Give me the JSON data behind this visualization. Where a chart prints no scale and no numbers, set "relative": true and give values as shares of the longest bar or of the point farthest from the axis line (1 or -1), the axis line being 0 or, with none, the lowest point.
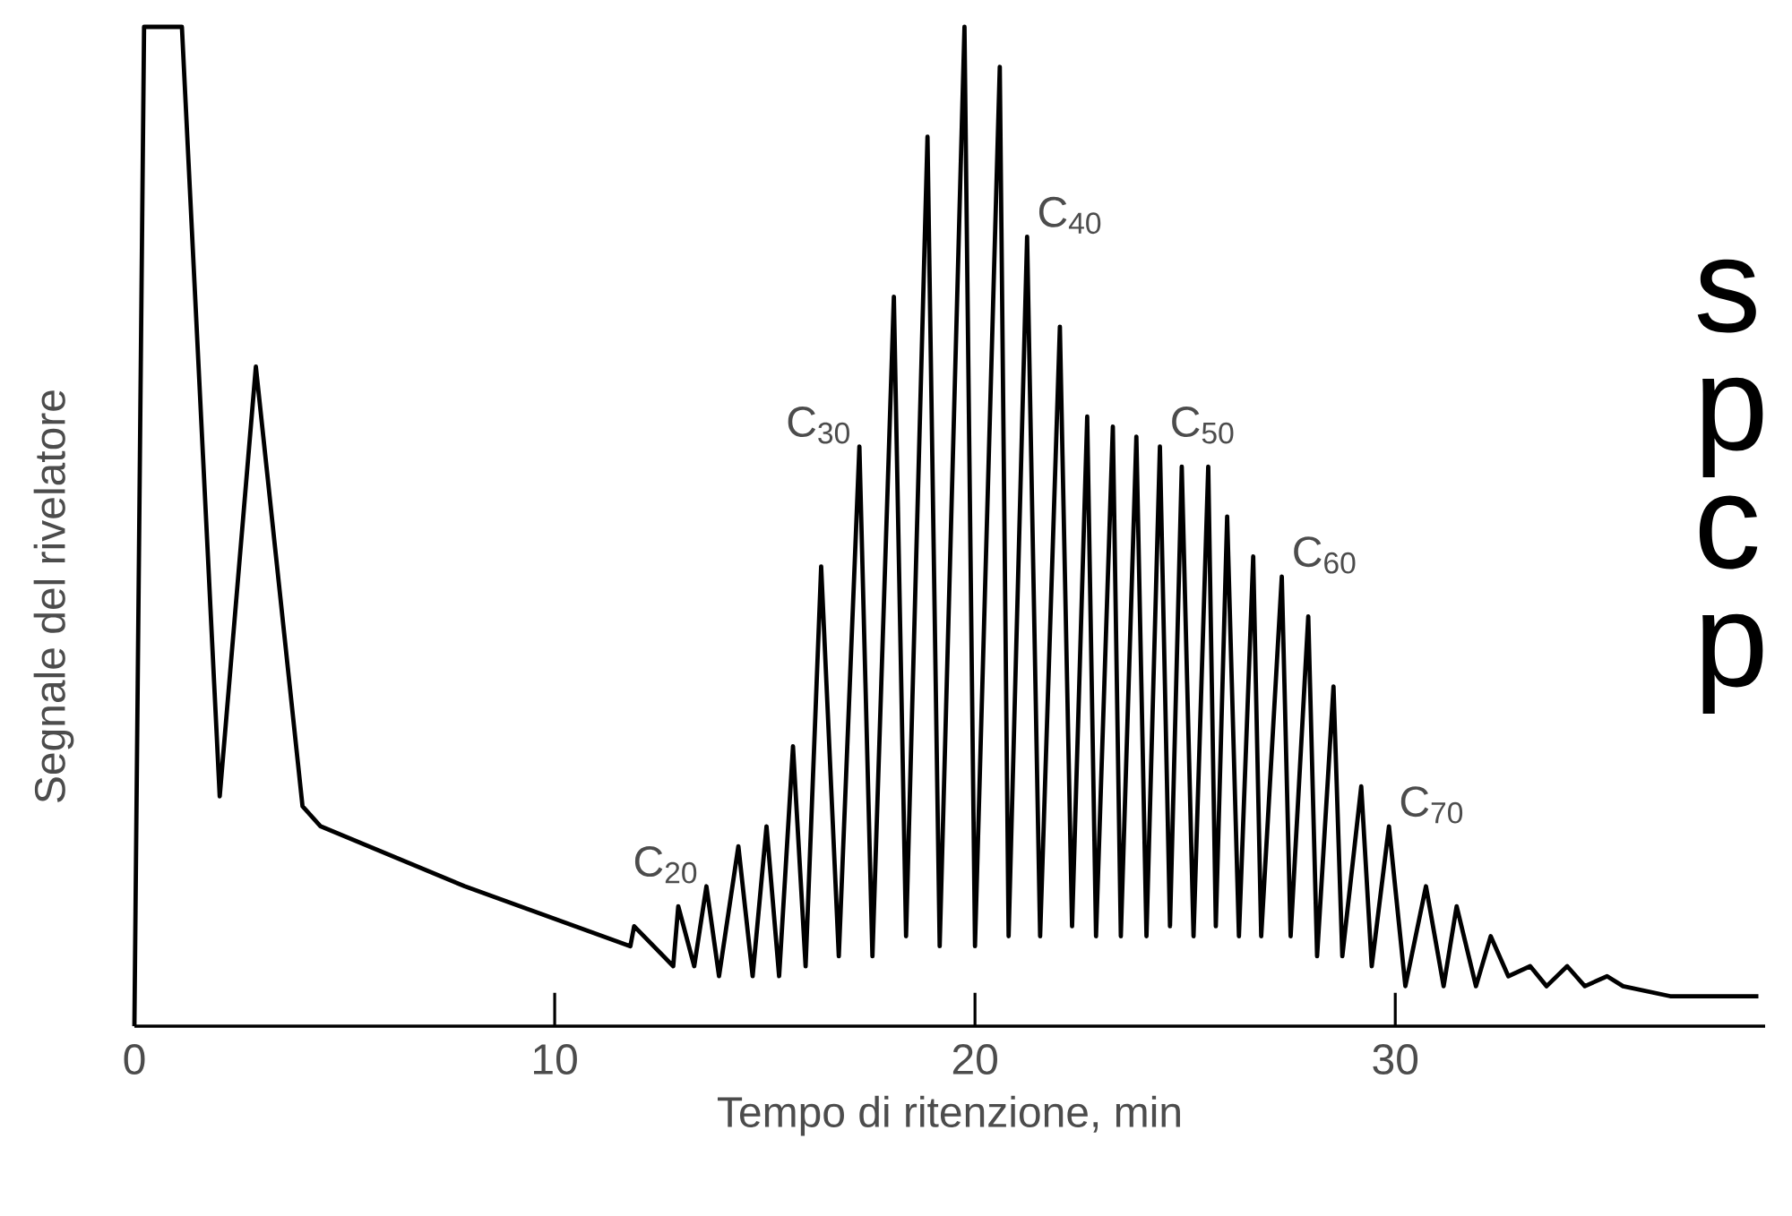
{
  "chart_data": {
    "type": "line",
    "relative": true,
    "color": "#000000",
    "xlabel": "Tempo di ritenzione, min",
    "ylabel": "Segnale del rivelatore",
    "xlim": [
      0,
      38.8
    ],
    "xticks": [
      0,
      10,
      20,
      30
    ],
    "x": [
      0,
      0.23,
      1.13,
      2.03,
      2.89,
      4.0,
      4.43,
      7.86,
      11.8,
      11.89,
      12.82,
      12.94,
      13.32,
      13.61,
      13.91,
      14.37,
      14.71,
      15.04,
      15.34,
      15.67,
      15.97,
      16.34,
      16.76,
      17.25,
      17.56,
      18.07,
      18.36,
      18.87,
      19.16,
      19.75,
      20.0,
      20.59,
      20.8,
      21.24,
      21.55,
      22.02,
      22.31,
      22.67,
      22.88,
      23.28,
      23.47,
      23.84,
      24.08,
      24.4,
      24.64,
      24.92,
      25.2,
      25.55,
      25.73,
      26.0,
      26.28,
      26.62,
      26.81,
      27.3,
      27.51,
      27.93,
      28.14,
      28.53,
      28.74,
      29.19,
      29.44,
      29.85,
      30.24,
      30.73,
      31.15,
      31.46,
      31.92,
      32.27,
      32.69,
      33.21,
      33.6,
      34.09,
      34.51,
      35.04,
      35.42,
      36.54,
      38.64
    ],
    "values": [
      0,
      1,
      1,
      0.23,
      0.66,
      0.22,
      0.2,
      0.14,
      0.08,
      0.1,
      0.06,
      0.12,
      0.06,
      0.14,
      0.05,
      0.18,
      0.05,
      0.2,
      0.05,
      0.28,
      0.06,
      0.46,
      0.07,
      0.58,
      0.07,
      0.73,
      0.09,
      0.89,
      0.08,
      1.0,
      0.08,
      0.96,
      0.09,
      0.79,
      0.09,
      0.7,
      0.1,
      0.61,
      0.09,
      0.6,
      0.09,
      0.59,
      0.09,
      0.58,
      0.1,
      0.56,
      0.09,
      0.56,
      0.1,
      0.51,
      0.09,
      0.47,
      0.09,
      0.45,
      0.09,
      0.41,
      0.07,
      0.34,
      0.07,
      0.24,
      0.06,
      0.2,
      0.04,
      0.14,
      0.04,
      0.12,
      0.04,
      0.09,
      0.05,
      0.06,
      0.04,
      0.06,
      0.04,
      0.05,
      0.04,
      0.03,
      0.03
    ],
    "annotations": [
      {
        "text": "C$_{20}$",
        "x": 13.61,
        "y": 0.14
      },
      {
        "text": "C$_{30}$",
        "x": 17.25,
        "y": 0.58
      },
      {
        "text": "C$_{40}$",
        "x": 21.24,
        "y": 0.79
      },
      {
        "text": "C$_{50}$",
        "x": 24.4,
        "y": 0.58
      },
      {
        "text": "C$_{60}$",
        "x": 27.3,
        "y": 0.45
      },
      {
        "text": "C$_{70}$",
        "x": 29.85,
        "y": 0.2
      },
      "s",
      "p",
      "c",
      "p"
    ]
  }
}
